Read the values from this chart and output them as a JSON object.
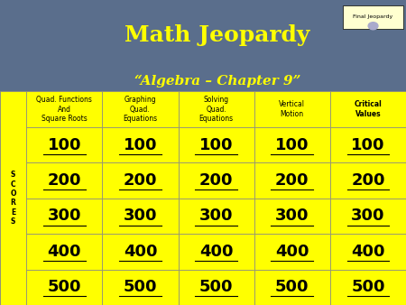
{
  "title": "Math Jeopardy",
  "subtitle": "“Algebra – Chapter 9”",
  "final_jeopardy": "Final Jeopardy",
  "scores_label": "S\nC\nO\nR\nE\nS",
  "categories": [
    "Quad. Functions\nAnd\nSquare Roots",
    "Graphing\nQuad.\nEquations",
    "Solving\nQuad.\nEquations",
    "Vertical\nMotion",
    "Critical\nValues"
  ],
  "values": [
    100,
    200,
    300,
    400,
    500
  ],
  "header_bg": "#5a6e8c",
  "cell_bg_yellow": "#FFFF00",
  "scores_bg": "#FFFF00",
  "title_color": "#FFFF00",
  "subtitle_color": "#FFFF00",
  "category_text_color": "#000000",
  "value_text_color": "#000000",
  "final_jeopardy_text_color": "#000000"
}
